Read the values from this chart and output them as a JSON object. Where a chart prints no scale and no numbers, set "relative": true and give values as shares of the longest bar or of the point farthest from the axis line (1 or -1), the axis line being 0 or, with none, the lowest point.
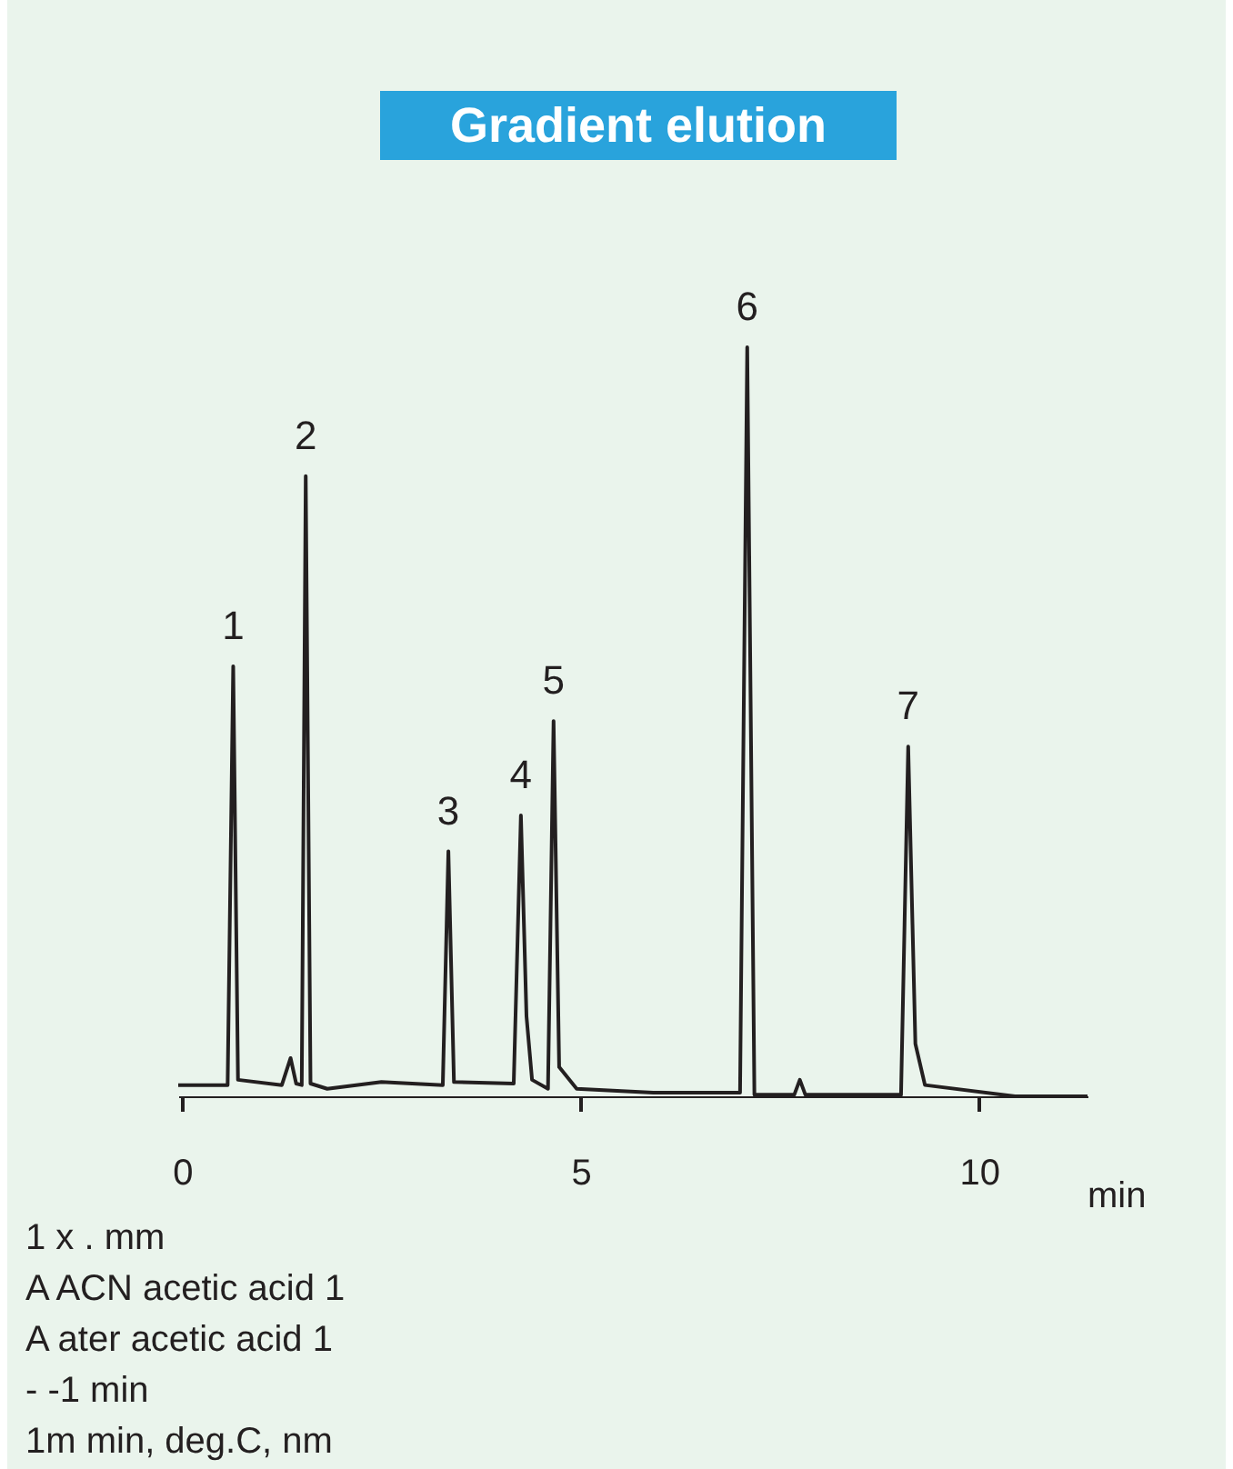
{
  "chart_data": {
    "type": "line",
    "title": "Gradient elution",
    "xlabel": "min",
    "relative": true,
    "xlim": [
      -0.05,
      11.36
    ],
    "xticks": [
      0,
      5,
      10
    ],
    "grid": false,
    "marker": "none",
    "line_style": "solid",
    "x": [
      -0.05,
      0.57,
      0.64,
      0.7,
      1.25,
      1.36,
      1.43,
      1.5,
      1.55,
      1.61,
      1.82,
      2.5,
      3.27,
      3.34,
      3.41,
      4.16,
      4.25,
      4.32,
      4.39,
      4.59,
      4.66,
      4.73,
      4.95,
      5.91,
      7.0,
      7.09,
      7.18,
      7.68,
      7.75,
      7.82,
      9.02,
      9.11,
      9.2,
      9.32,
      10.45,
      11.36
    ],
    "series": [
      {
        "color": "#231f20",
        "values": [
          0.015,
          0.015,
          0.574,
          0.022,
          0.015,
          0.051,
          0.017,
          0.015,
          0.828,
          0.017,
          0.01,
          0.019,
          0.015,
          0.327,
          0.019,
          0.017,
          0.375,
          0.107,
          0.022,
          0.01,
          0.501,
          0.039,
          0.01,
          0.005,
          0.005,
          1,
          0.002,
          0.002,
          0.022,
          0.002,
          0.002,
          0.467,
          0.07,
          0.015,
          0,
          0
        ]
      }
    ],
    "annotations": [
      {
        "text": "1",
        "x": 0.64,
        "y": 0.574
      },
      {
        "text": "2",
        "x": 1.55,
        "y": 0.828
      },
      {
        "text": "3",
        "x": 3.34,
        "y": 0.327
      },
      {
        "text": "4",
        "x": 4.25,
        "y": 0.375
      },
      {
        "text": "5",
        "x": 4.66,
        "y": 0.501
      },
      {
        "text": "6",
        "x": 7.09,
        "y": 1
      },
      {
        "text": "7",
        "x": 9.11,
        "y": 0.467
      },
      "1 x . mm",
      "A ACN acetic acid 1",
      "A ater acetic acid 1",
      "- -1 min",
      "1m min, deg.C, nm"
    ]
  }
}
